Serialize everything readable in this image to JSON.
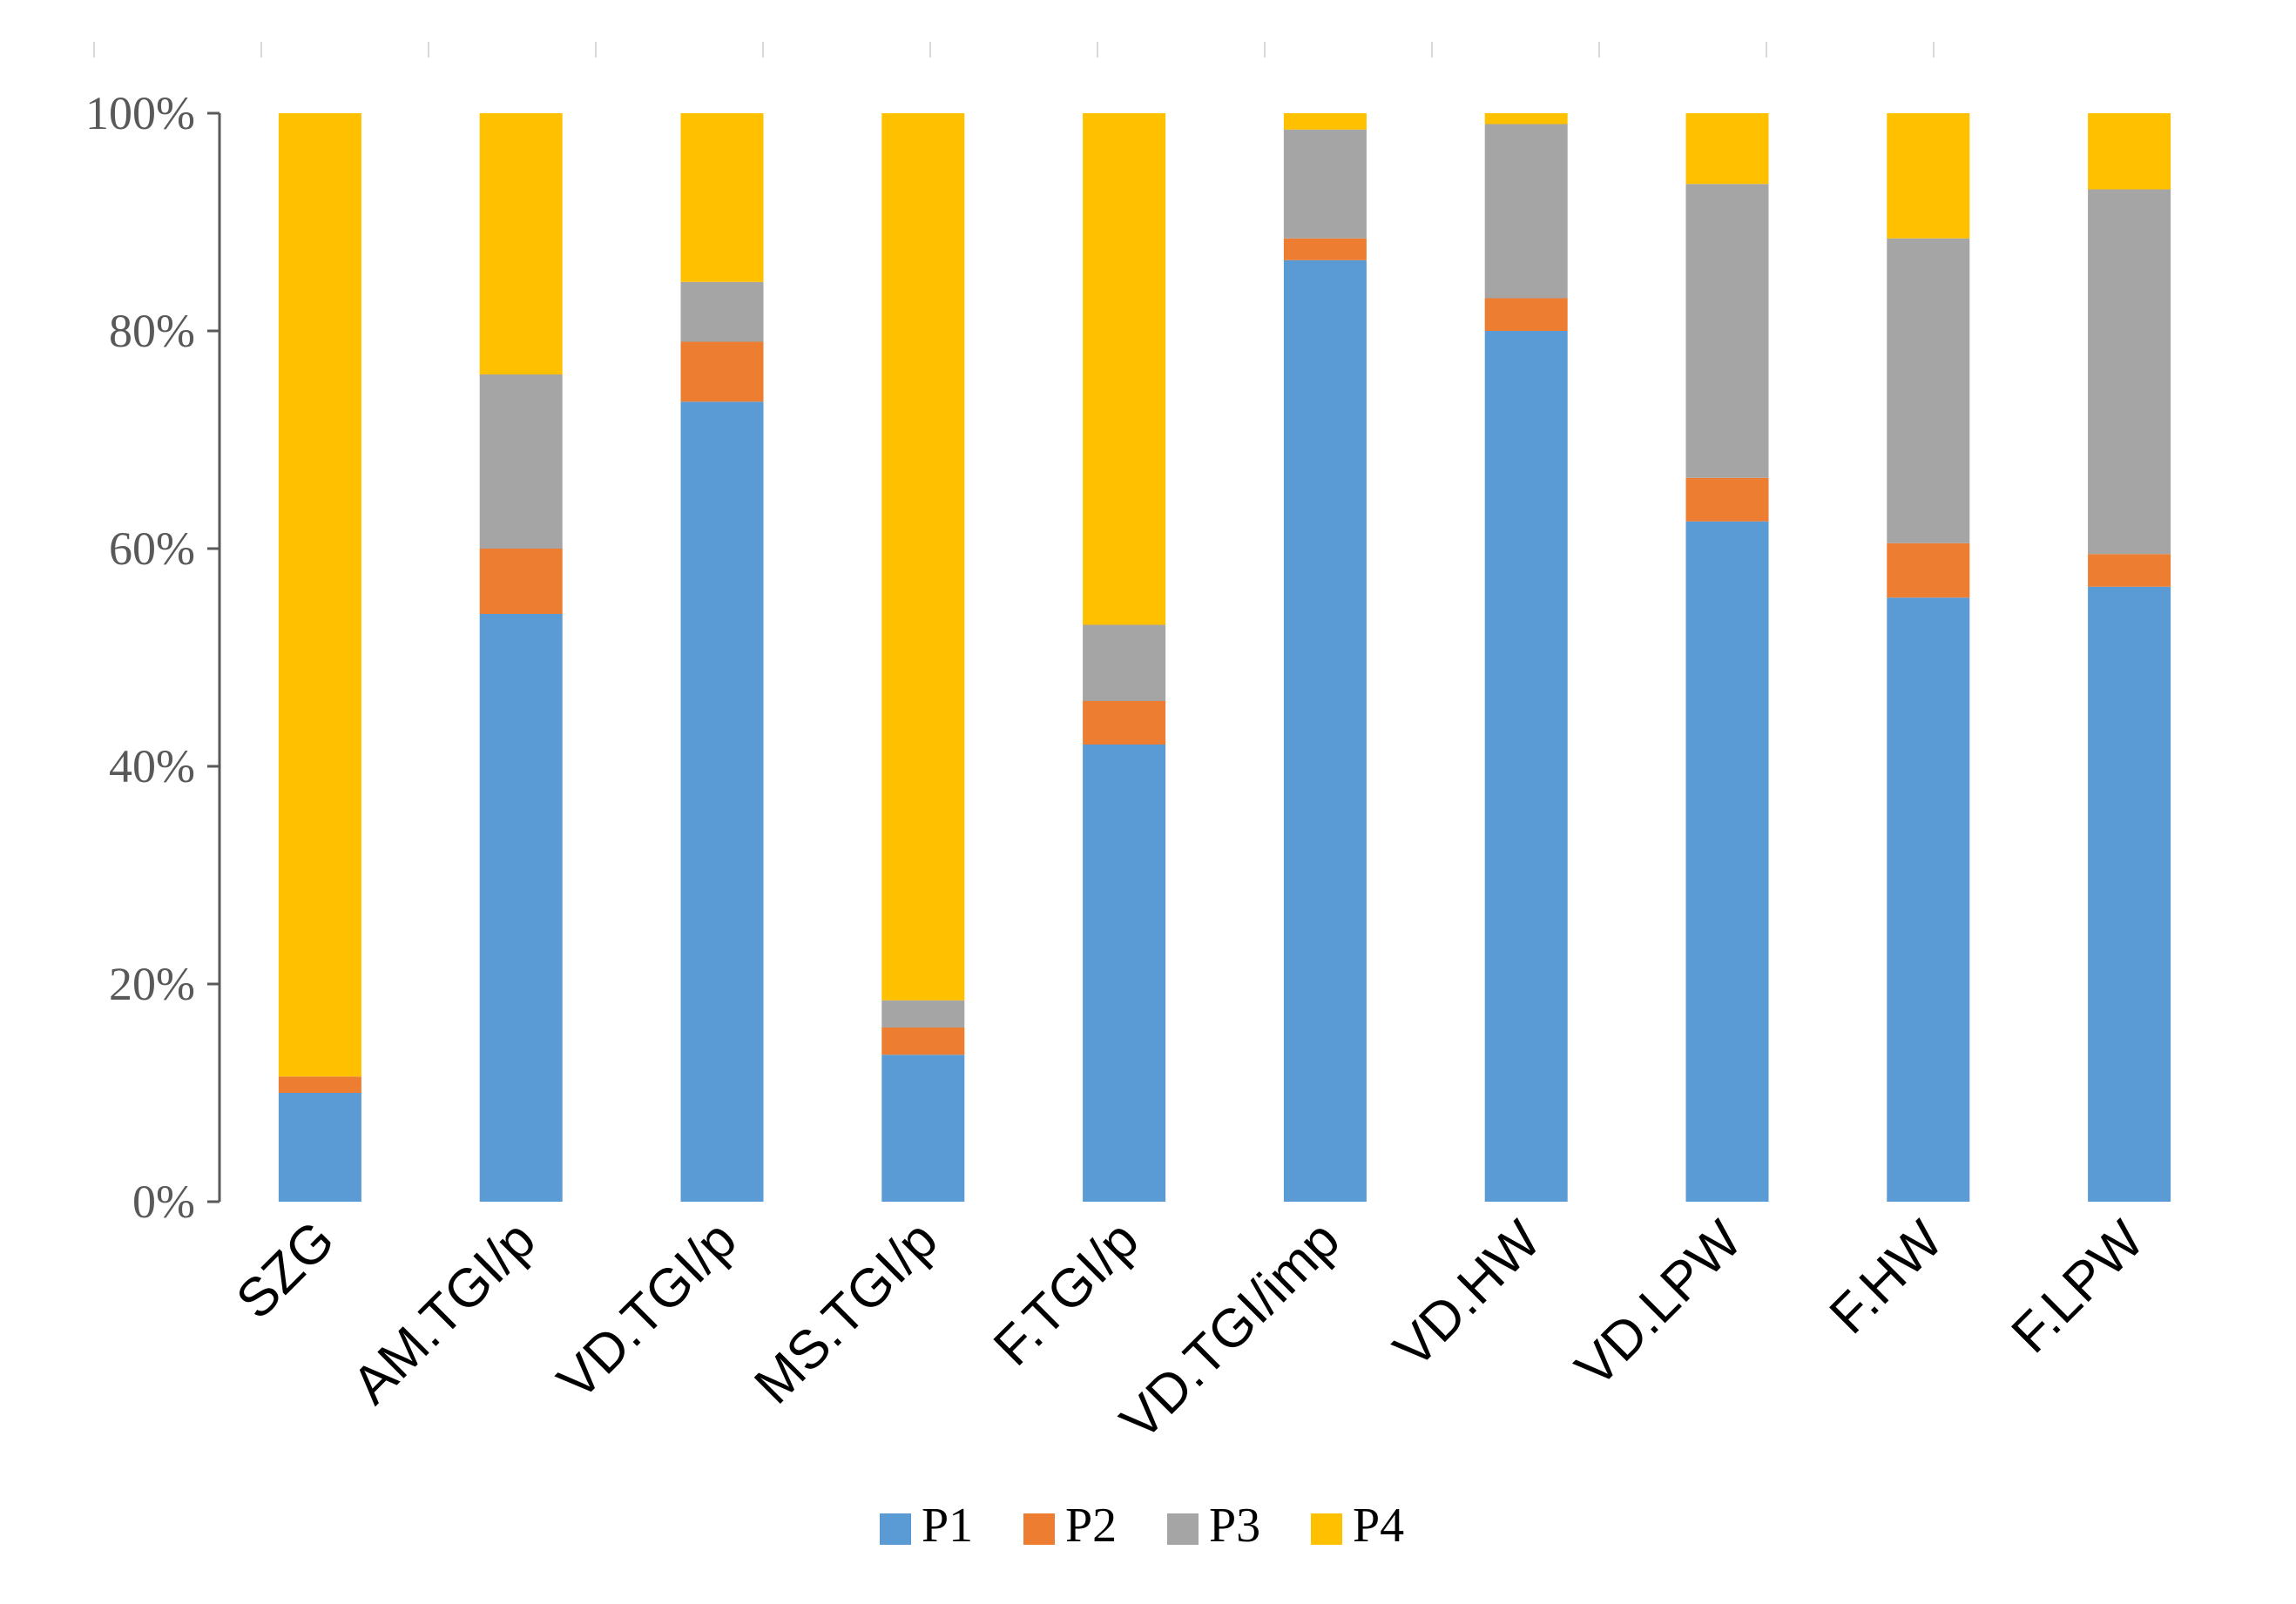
{
  "chart_data": {
    "type": "bar",
    "stacked": true,
    "normalized": true,
    "title": "",
    "xlabel": "",
    "ylabel": "",
    "ylim": [
      0,
      100
    ],
    "yticks": [
      0,
      20,
      40,
      60,
      80,
      100
    ],
    "ytick_labels": [
      "0%",
      "20%",
      "40%",
      "60%",
      "80%",
      "100%"
    ],
    "categories": [
      "SZG",
      "AM.TGI/p",
      "VD.TGI/p",
      "MS.TGI/p",
      "F.TGI/p",
      "VD.TGI/imp",
      "VD.HW",
      "VD.LPW",
      "F.HW",
      "F.LPW"
    ],
    "series": [
      {
        "name": "P1",
        "color": "#5B9BD5",
        "values": [
          10,
          54,
          73.5,
          13.5,
          42,
          86.5,
          80,
          62.5,
          55.5,
          56.5
        ]
      },
      {
        "name": "P2",
        "color": "#ED7D31",
        "values": [
          1.5,
          6,
          5.5,
          2.5,
          4,
          2,
          3,
          4,
          5,
          3
        ]
      },
      {
        "name": "P3",
        "color": "#A5A5A5",
        "values": [
          0,
          16,
          5.5,
          2.5,
          7,
          10,
          16,
          27,
          28,
          33.5
        ]
      },
      {
        "name": "P4",
        "color": "#FFC000",
        "values": [
          88.5,
          24,
          15.5,
          81.5,
          47,
          1.5,
          1,
          6.5,
          11.5,
          7
        ]
      }
    ],
    "legend": {
      "position": "bottom",
      "entries": [
        "P1",
        "P2",
        "P3",
        "P4"
      ]
    },
    "grid": false
  }
}
